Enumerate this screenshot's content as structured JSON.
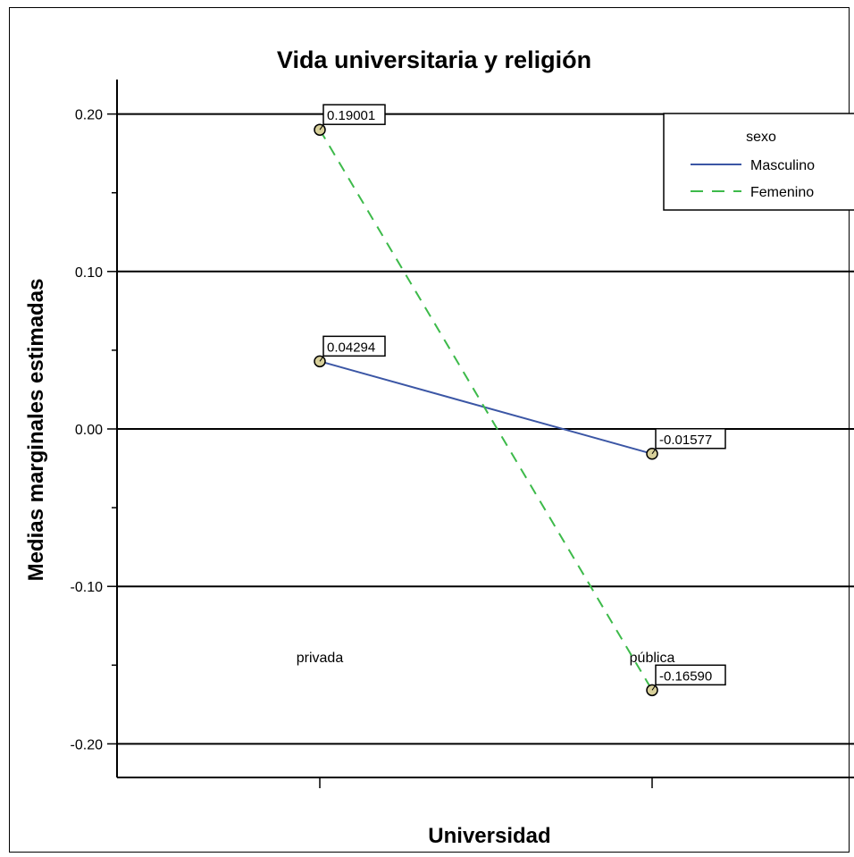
{
  "chart_data": {
    "type": "line",
    "title": "Vida universitaria y religión",
    "xlabel": "Universidad",
    "ylabel": "Medias marginales estimadas",
    "categories": [
      "privada",
      "pública"
    ],
    "ylim": [
      -0.22,
      0.22
    ],
    "yticks_major": [
      0.2,
      0.1,
      0.0,
      -0.1,
      -0.2
    ],
    "ytick_labels": [
      "0.20",
      "0.10",
      "0.00",
      "-0.10",
      "-0.20"
    ],
    "yticks_minor": [
      0.15,
      0.05,
      -0.05,
      -0.15
    ],
    "grid": "horizontal major",
    "legend_position": "top-right",
    "legend_title": "sexo",
    "series": [
      {
        "name": "Masculino",
        "values": [
          0.04294,
          -0.01577
        ],
        "value_labels": [
          "0.04294",
          "-0.01577"
        ],
        "color": "#3b56a5",
        "dash": "solid"
      },
      {
        "name": "Femenino",
        "values": [
          0.19001,
          -0.1659
        ],
        "value_labels": [
          "0.19001",
          "-0.16590"
        ],
        "color": "#3dba4a",
        "dash": "dashed"
      }
    ],
    "marker_color": "#d8d09a"
  }
}
